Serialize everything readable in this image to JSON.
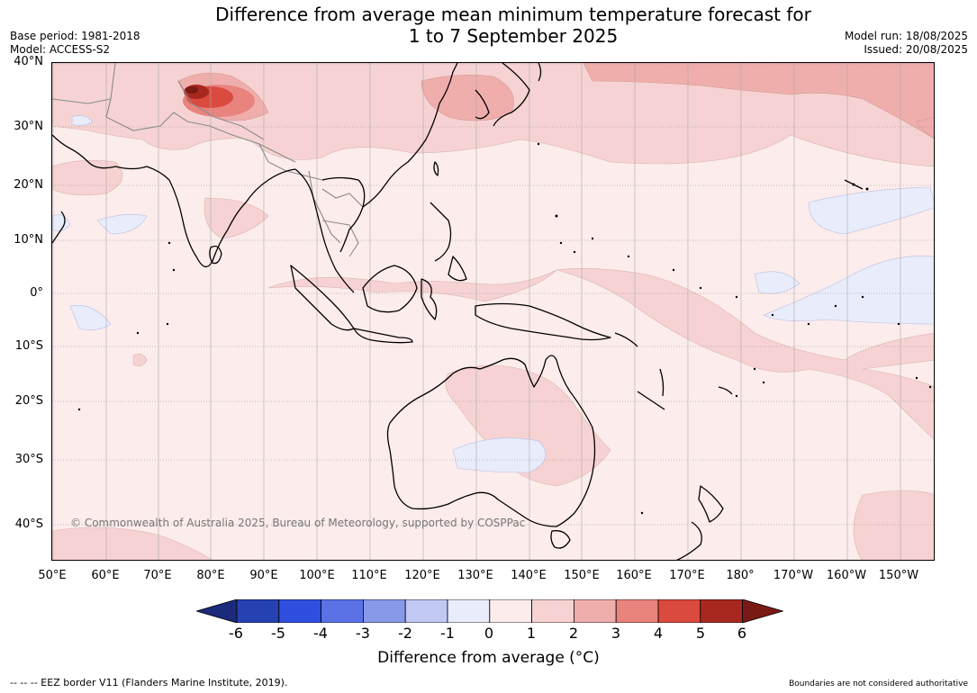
{
  "title": {
    "line1": "Difference from average mean minimum temperature forecast for",
    "line2": "1 to 7 September 2025"
  },
  "meta": {
    "base_period": "Base period: 1981-2018",
    "model": "Model: ACCESS-S2",
    "model_run": "Model run: 18/08/2025",
    "issued": "Issued: 20/08/2025"
  },
  "map": {
    "copyright": "© Commonwealth of Australia 2025, Bureau of Meteorology, supported by COSPPac",
    "lat_labels": [
      "40°N",
      "30°N",
      "20°N",
      "10°N",
      "0°",
      "10°S",
      "20°S",
      "30°S",
      "40°S"
    ],
    "lon_labels": [
      "50°E",
      "60°E",
      "70°E",
      "80°E",
      "90°E",
      "100°E",
      "110°E",
      "120°E",
      "130°E",
      "140°E",
      "150°E",
      "160°E",
      "170°E",
      "180°",
      "170°W",
      "160°W",
      "150°W"
    ]
  },
  "colorbar": {
    "ticks": [
      "-6",
      "-5",
      "-4",
      "-3",
      "-2",
      "-1",
      "0",
      "1",
      "2",
      "3",
      "4",
      "5",
      "6"
    ],
    "label": "Difference from average (°C)",
    "colors": [
      "#1b2a7a",
      "#2541b2",
      "#2f4fe0",
      "#5a72e6",
      "#8899ea",
      "#c1c9f3",
      "#e8ecfb",
      "#fcecec",
      "#f6d3d2",
      "#efaeac",
      "#e8837e",
      "#db4a3e",
      "#a8281f",
      "#7a1a14"
    ]
  },
  "footer": {
    "eez": "--  --  -- EEZ border V11 (Flanders Marine Institute, 2019).",
    "boundaries": "Boundaries are not considered authoritative"
  }
}
